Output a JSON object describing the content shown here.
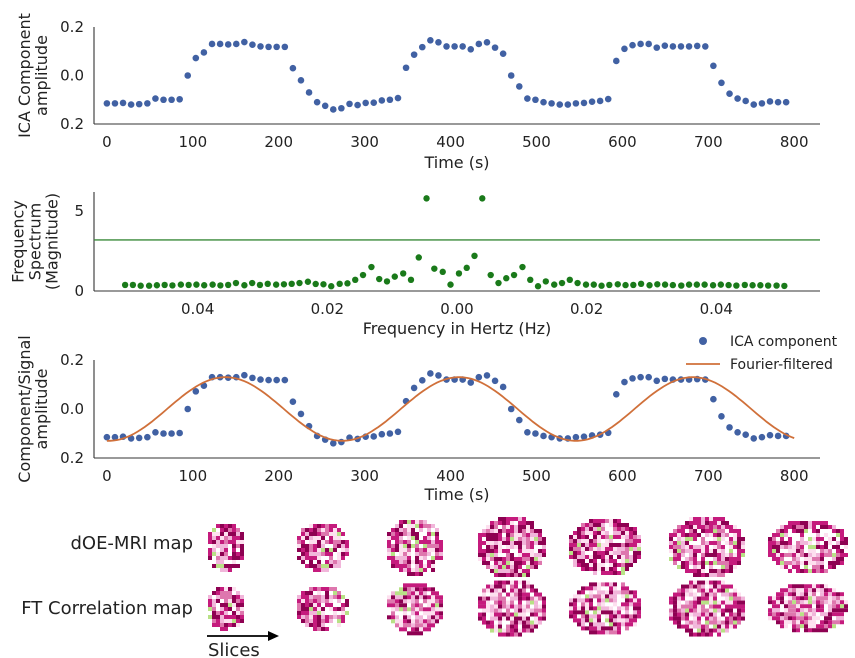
{
  "colors": {
    "ica": "#4161a3",
    "spectrum": "#1a7a1a",
    "threshold": "#3a8a3a",
    "fourier": "#d0703a",
    "map_dark": "#8e0152",
    "map_mid": "#de77ae",
    "map_light": "#fde0ef",
    "map_green": "#b8e186"
  },
  "chart_data": [
    {
      "type": "scatter",
      "ylabel": [
        "ICA Component",
        "amplitude"
      ],
      "xlabel": "Time (s)",
      "xlim": [
        -15,
        830
      ],
      "ylim": [
        -0.2,
        0.2
      ],
      "xticks": [
        0,
        100,
        200,
        300,
        400,
        500,
        600,
        700,
        800
      ],
      "yticks": [
        -0.2,
        0.0,
        0.2
      ],
      "ytick_labels": [
        "0.2",
        "0.0",
        "0.2"
      ],
      "series": [
        {
          "x": [
            0,
            9.4,
            18.8,
            28.2,
            37.6,
            47.1,
            56.5,
            65.9,
            75.3,
            84.7,
            94.1,
            103.5,
            112.9,
            122.4,
            131.8,
            141.2,
            150.6,
            160,
            169.4,
            178.8,
            188.2,
            197.6,
            207.1,
            216.5,
            225.9,
            235.3,
            244.7,
            254.1,
            263.5,
            272.9,
            282.4,
            291.8,
            301.2,
            310.6,
            320,
            329.4,
            338.8,
            348.2,
            357.6,
            367.1,
            376.5,
            385.9,
            395.3,
            404.7,
            414.1,
            423.5,
            432.9,
            442.4,
            451.8,
            461.2,
            470.6,
            480,
            489.4,
            498.8,
            508.2,
            517.6,
            527.1,
            536.5,
            545.9,
            555.3,
            564.7,
            574.1,
            583.5,
            592.9,
            602.4,
            611.8,
            621.2,
            630.6,
            640,
            649.4,
            658.8,
            668.2,
            677.6,
            687.1,
            696.5,
            705.9,
            715.3,
            724.7,
            734.1,
            743.5,
            752.9,
            762.4,
            771.8,
            781.2,
            790.6
          ],
          "y": [
            -0.115,
            -0.115,
            -0.113,
            -0.12,
            -0.118,
            -0.115,
            -0.095,
            -0.1,
            -0.1,
            -0.098,
            0.0,
            0.072,
            0.095,
            0.13,
            0.13,
            0.128,
            0.13,
            0.138,
            0.127,
            0.12,
            0.118,
            0.118,
            0.118,
            0.03,
            -0.02,
            -0.07,
            -0.11,
            -0.125,
            -0.14,
            -0.135,
            -0.117,
            -0.122,
            -0.113,
            -0.112,
            -0.103,
            -0.1,
            -0.093,
            0.032,
            0.086,
            0.117,
            0.145,
            0.137,
            0.12,
            0.12,
            0.12,
            0.108,
            0.13,
            0.137,
            0.115,
            0.09,
            0.0,
            -0.045,
            -0.095,
            -0.1,
            -0.11,
            -0.115,
            -0.12,
            -0.12,
            -0.115,
            -0.113,
            -0.108,
            -0.105,
            -0.097,
            0.06,
            0.11,
            0.125,
            0.13,
            0.13,
            0.115,
            0.123,
            0.12,
            0.12,
            0.12,
            0.122,
            0.12,
            0.04,
            -0.03,
            -0.075,
            -0.095,
            -0.105,
            -0.12,
            -0.115,
            -0.107,
            -0.11,
            -0.11
          ]
        }
      ]
    },
    {
      "type": "scatter",
      "ylabel": [
        "Frequency",
        "Spectrum",
        "(Magnitude)"
      ],
      "xlabel": "Frequency in Hertz (Hz)",
      "xlim": [
        -0.056,
        0.056
      ],
      "ylim": [
        0,
        6.2
      ],
      "xticks": [
        -0.04,
        -0.02,
        0.0,
        0.02,
        0.04
      ],
      "xtick_labels": [
        "0.04",
        "0.02",
        "0.00",
        "0.02",
        "0.04"
      ],
      "yticks": [
        0,
        5
      ],
      "ytick_labels": [
        "0",
        "5"
      ],
      "threshold": 3.2,
      "series": [
        {
          "x": [
            -0.0512,
            -0.05,
            -0.0488,
            -0.0475,
            -0.0463,
            -0.0451,
            -0.0439,
            -0.0426,
            -0.0414,
            -0.0402,
            -0.039,
            -0.0377,
            -0.0365,
            -0.0353,
            -0.0341,
            -0.0328,
            -0.0316,
            -0.0304,
            -0.0292,
            -0.0279,
            -0.0267,
            -0.0255,
            -0.0243,
            -0.023,
            -0.0218,
            -0.0206,
            -0.0194,
            -0.0181,
            -0.0169,
            -0.0157,
            -0.0145,
            -0.0132,
            -0.012,
            -0.0108,
            -0.0096,
            -0.0083,
            -0.0071,
            -0.0059,
            -0.0047,
            -0.0035,
            -0.0022,
            -0.001,
            0.0003,
            0.0015,
            0.0027,
            0.0039,
            0.0052,
            0.0064,
            0.0076,
            0.0088,
            0.0101,
            0.0113,
            0.0125,
            0.0137,
            0.015,
            0.0162,
            0.0174,
            0.0186,
            0.0199,
            0.0211,
            0.0223,
            0.0235,
            0.0248,
            0.026,
            0.0272,
            0.0284,
            0.0297,
            0.0309,
            0.0321,
            0.0333,
            0.0346,
            0.0358,
            0.037,
            0.0382,
            0.0395,
            0.0407,
            0.0419,
            0.0431,
            0.0444,
            0.0456,
            0.0468,
            0.048,
            0.0493,
            0.0505
          ],
          "y": [
            0.38,
            0.38,
            0.33,
            0.33,
            0.36,
            0.38,
            0.35,
            0.4,
            0.38,
            0.4,
            0.36,
            0.4,
            0.35,
            0.38,
            0.5,
            0.36,
            0.5,
            0.38,
            0.45,
            0.4,
            0.42,
            0.45,
            0.5,
            0.58,
            0.44,
            0.42,
            0.3,
            0.45,
            0.48,
            0.7,
            1.0,
            1.5,
            0.75,
            0.6,
            0.9,
            1.1,
            0.7,
            2.1,
            5.8,
            1.4,
            1.2,
            0.4,
            1.1,
            1.45,
            2.2,
            5.8,
            1.0,
            0.5,
            0.8,
            1.0,
            1.5,
            0.7,
            0.3,
            0.6,
            0.4,
            0.5,
            0.7,
            0.5,
            0.4,
            0.4,
            0.33,
            0.38,
            0.42,
            0.37,
            0.38,
            0.45,
            0.36,
            0.42,
            0.4,
            0.37,
            0.34,
            0.4,
            0.4,
            0.4,
            0.36,
            0.4,
            0.37,
            0.34,
            0.38,
            0.36,
            0.36,
            0.34,
            0.34,
            0.32
          ]
        }
      ]
    },
    {
      "type": "line",
      "ylabel": [
        "Component/Signal",
        "amplitude"
      ],
      "xlabel": "Time (s)",
      "xlim": [
        -15,
        830
      ],
      "ylim": [
        -0.2,
        0.2
      ],
      "xticks": [
        0,
        100,
        200,
        300,
        400,
        500,
        600,
        700,
        800
      ],
      "yticks": [
        -0.2,
        0.0,
        0.2
      ],
      "ytick_labels": [
        "0.2",
        "0.0",
        "0.2"
      ],
      "legend": {
        "placement": "top-right",
        "entries": [
          "ICA component",
          "Fourier-filtered"
        ]
      },
      "fourier": {
        "amplitude": 0.13,
        "offset": 0.0,
        "period": 272,
        "peak": 138
      },
      "series": [
        {
          "name": "ICA component",
          "mark": "points",
          "source": "same as top panel"
        },
        {
          "name": "Fourier-filtered",
          "mark": "line",
          "x_range": [
            0,
            800
          ]
        }
      ]
    }
  ],
  "maps": {
    "rows": [
      "dOE-MRI map",
      "FT Correlation map"
    ],
    "slice_count": 7,
    "slices_label": "Slices"
  }
}
